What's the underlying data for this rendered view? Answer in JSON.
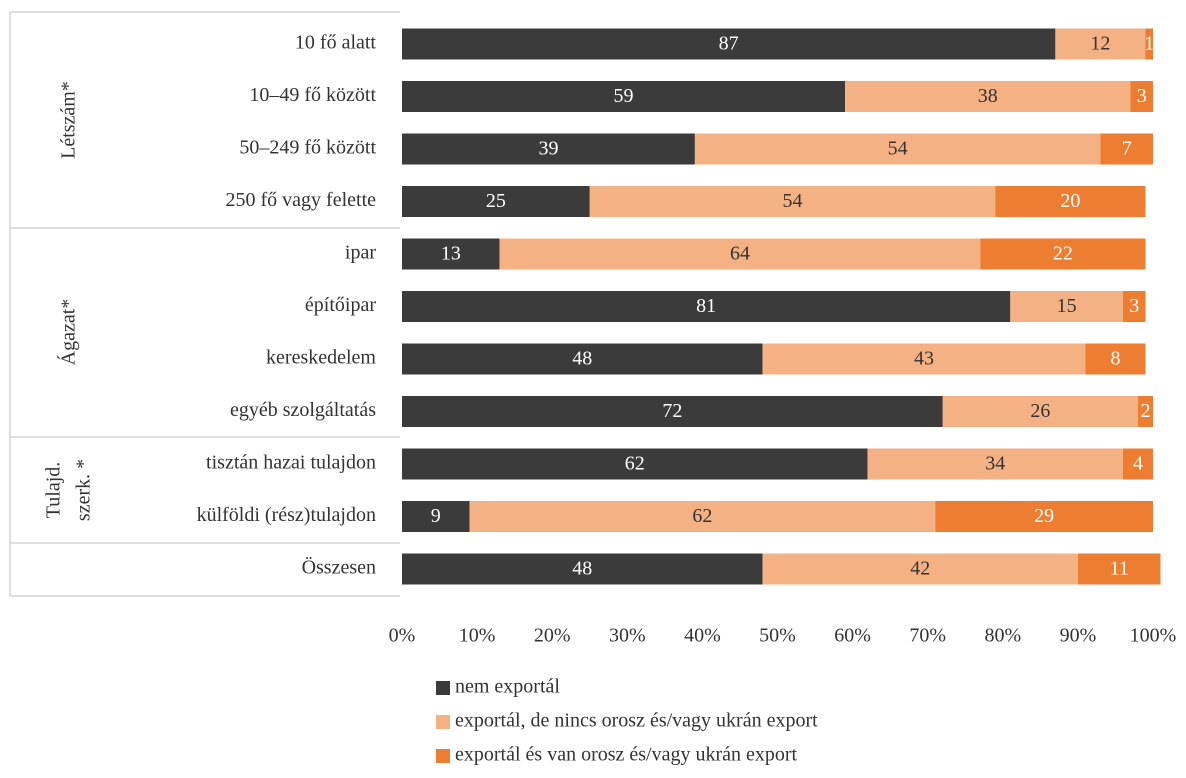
{
  "chart_data": {
    "type": "stacked_barh",
    "categories": [
      "10 fő alatt",
      "10–49 fő között",
      "50–249 fő között",
      "250 fő vagy felette",
      "ipar",
      "építőipar",
      "kereskedelem",
      "egyéb szolgáltatás",
      "tisztán hazai tulajdon",
      "külföldi (rész)tulajdon",
      "Összesen"
    ],
    "group_labels": [
      "Létszám*",
      "Ágazat*",
      "Tulajd.",
      "szerk. *"
    ],
    "series": [
      {
        "name": "nem exportál",
        "color": "#3b3b3b",
        "values": [
          87,
          59,
          39,
          25,
          13,
          81,
          48,
          72,
          62,
          9,
          48
        ]
      },
      {
        "name": "exportál, de nincs orosz és/vagy ukrán export",
        "color": "#f4b183",
        "values": [
          12,
          38,
          54,
          54,
          64,
          15,
          43,
          26,
          34,
          62,
          42
        ]
      },
      {
        "name": "exportál és van orosz és/vagy ukrán export",
        "color": "#ed7d31",
        "values": [
          1,
          3,
          7,
          20,
          22,
          3,
          8,
          2,
          4,
          29,
          11
        ]
      }
    ],
    "xlim": [
      0,
      100
    ],
    "xticks": [
      {
        "value": 0,
        "label": "0%"
      },
      {
        "value": 10,
        "label": "10%"
      },
      {
        "value": 20,
        "label": "20%"
      },
      {
        "value": 30,
        "label": "30%"
      },
      {
        "value": 40,
        "label": "40%"
      },
      {
        "value": 50,
        "label": "50%"
      },
      {
        "value": 60,
        "label": "60%"
      },
      {
        "value": 70,
        "label": "70%"
      },
      {
        "value": 80,
        "label": "80%"
      },
      {
        "value": 90,
        "label": "90%"
      },
      {
        "value": 100,
        "label": "100%"
      }
    ],
    "legend": "bottom"
  }
}
